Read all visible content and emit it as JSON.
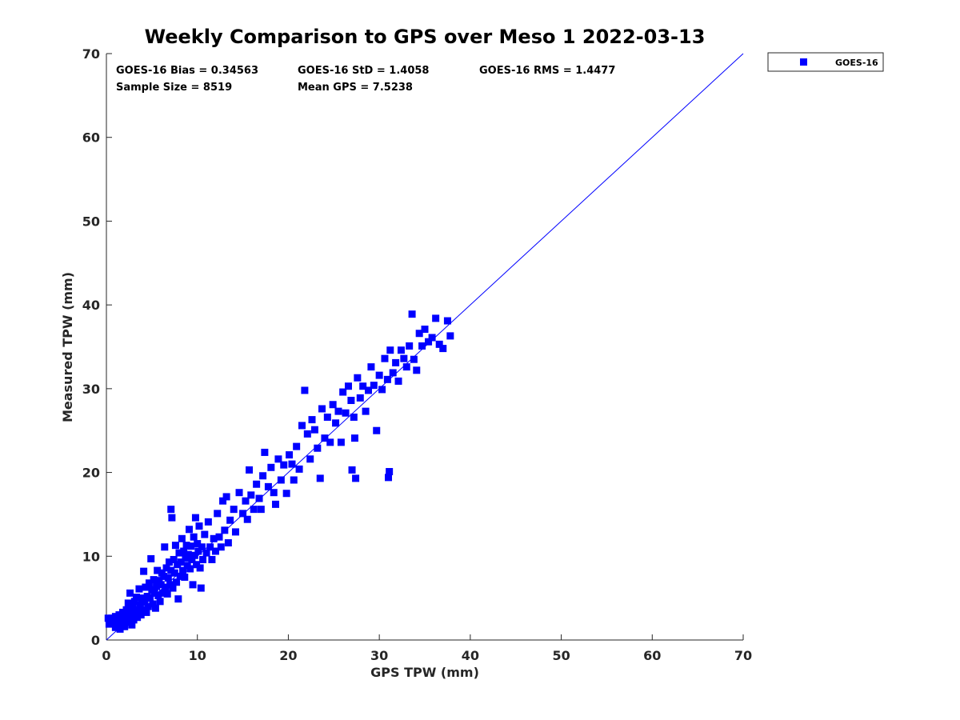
{
  "chart_data": {
    "type": "scatter",
    "title": "Weekly Comparison to GPS over Meso 1 2022-03-13",
    "xlabel": "GPS TPW (mm)",
    "ylabel": "Measured TPW (mm)",
    "xlim": [
      0,
      70
    ],
    "ylim": [
      0,
      70
    ],
    "xticks": [
      "0",
      "10",
      "20",
      "30",
      "40",
      "50",
      "60",
      "70"
    ],
    "yticks": [
      "0",
      "10",
      "20",
      "30",
      "40",
      "50",
      "60",
      "70"
    ],
    "legend": {
      "position": "outside-top-right",
      "entries": [
        "GOES-16"
      ]
    },
    "stats": {
      "bias": "GOES-16 Bias = 0.34563",
      "std": "GOES-16 StD = 1.4058",
      "rms": "GOES-16 RMS = 1.4477",
      "sample_size": "Sample Size = 8519",
      "mean_gps": "Mean GPS = 7.5238"
    },
    "reference_line": {
      "x": [
        0,
        70
      ],
      "y": [
        0,
        70
      ]
    },
    "series": [
      {
        "name": "GOES-16",
        "color": "#0000ff",
        "marker": "square",
        "points": [
          [
            0.2,
            2.6
          ],
          [
            0.3,
            1.9
          ],
          [
            0.5,
            2.3
          ],
          [
            0.6,
            2.6
          ],
          [
            0.8,
            2.1
          ],
          [
            1.0,
            1.5
          ],
          [
            1.0,
            2.8
          ],
          [
            1.2,
            1.8
          ],
          [
            1.3,
            2.3
          ],
          [
            1.4,
            3.0
          ],
          [
            1.5,
            1.3
          ],
          [
            1.6,
            2.6
          ],
          [
            1.7,
            1.9
          ],
          [
            1.8,
            3.3
          ],
          [
            1.9,
            2.2
          ],
          [
            2.0,
            1.6
          ],
          [
            2.1,
            2.9
          ],
          [
            2.2,
            3.6
          ],
          [
            2.3,
            2.1
          ],
          [
            2.4,
            4.4
          ],
          [
            2.5,
            2.6
          ],
          [
            2.6,
            3.1
          ],
          [
            2.6,
            5.6
          ],
          [
            2.8,
            1.8
          ],
          [
            2.9,
            3.8
          ],
          [
            3.0,
            2.4
          ],
          [
            3.1,
            4.6
          ],
          [
            3.2,
            3.1
          ],
          [
            3.3,
            5.1
          ],
          [
            3.4,
            2.7
          ],
          [
            3.5,
            3.6
          ],
          [
            3.6,
            6.1
          ],
          [
            3.7,
            4.2
          ],
          [
            3.8,
            3.0
          ],
          [
            3.9,
            5.0
          ],
          [
            4.0,
            3.6
          ],
          [
            4.1,
            8.2
          ],
          [
            4.2,
            4.5
          ],
          [
            4.3,
            6.3
          ],
          [
            4.4,
            3.3
          ],
          [
            4.5,
            5.2
          ],
          [
            4.6,
            4.0
          ],
          [
            4.7,
            6.8
          ],
          [
            4.8,
            5.0
          ],
          [
            4.9,
            9.7
          ],
          [
            5.0,
            6.0
          ],
          [
            5.1,
            4.3
          ],
          [
            5.2,
            7.2
          ],
          [
            5.3,
            5.6
          ],
          [
            5.4,
            3.8
          ],
          [
            5.5,
            6.4
          ],
          [
            5.6,
            8.3
          ],
          [
            5.7,
            5.3
          ],
          [
            5.8,
            7.1
          ],
          [
            5.9,
            4.6
          ],
          [
            6.0,
            6.6
          ],
          [
            6.1,
            8.0
          ],
          [
            6.2,
            5.6
          ],
          [
            6.3,
            7.6
          ],
          [
            6.4,
            11.1
          ],
          [
            6.5,
            6.3
          ],
          [
            6.6,
            8.6
          ],
          [
            6.7,
            5.5
          ],
          [
            6.8,
            7.4
          ],
          [
            6.9,
            9.3
          ],
          [
            7.0,
            6.6
          ],
          [
            7.1,
            8.3
          ],
          [
            7.1,
            15.6
          ],
          [
            7.2,
            14.6
          ],
          [
            7.3,
            6.2
          ],
          [
            7.4,
            9.6
          ],
          [
            7.5,
            8.0
          ],
          [
            7.6,
            11.3
          ],
          [
            7.7,
            6.9
          ],
          [
            7.8,
            9.0
          ],
          [
            7.9,
            4.9
          ],
          [
            8.0,
            10.4
          ],
          [
            8.1,
            7.6
          ],
          [
            8.2,
            9.3
          ],
          [
            8.3,
            12.1
          ],
          [
            8.4,
            8.3
          ],
          [
            8.5,
            10.6
          ],
          [
            8.6,
            7.5
          ],
          [
            8.7,
            9.8
          ],
          [
            8.8,
            11.3
          ],
          [
            8.9,
            8.9
          ],
          [
            9.0,
            10.2
          ],
          [
            9.1,
            13.2
          ],
          [
            9.2,
            8.5
          ],
          [
            9.3,
            11.2
          ],
          [
            9.4,
            9.6
          ],
          [
            9.5,
            6.6
          ],
          [
            9.6,
            12.3
          ],
          [
            9.7,
            10.1
          ],
          [
            9.8,
            14.6
          ],
          [
            9.9,
            9.0
          ],
          [
            10.0,
            11.5
          ],
          [
            10.1,
            10.6
          ],
          [
            10.2,
            13.6
          ],
          [
            10.3,
            8.6
          ],
          [
            10.4,
            6.2
          ],
          [
            10.5,
            11.1
          ],
          [
            10.6,
            9.6
          ],
          [
            10.8,
            12.6
          ],
          [
            11.0,
            10.4
          ],
          [
            11.2,
            14.1
          ],
          [
            11.4,
            11.1
          ],
          [
            11.6,
            9.6
          ],
          [
            11.8,
            12.1
          ],
          [
            12.0,
            10.6
          ],
          [
            12.2,
            15.1
          ],
          [
            12.4,
            12.3
          ],
          [
            12.6,
            11.1
          ],
          [
            12.8,
            16.6
          ],
          [
            13.0,
            13.1
          ],
          [
            13.2,
            17.1
          ],
          [
            13.4,
            11.6
          ],
          [
            13.6,
            14.3
          ],
          [
            14.0,
            15.6
          ],
          [
            14.2,
            12.9
          ],
          [
            14.6,
            17.6
          ],
          [
            15.0,
            15.1
          ],
          [
            15.3,
            16.6
          ],
          [
            15.5,
            14.4
          ],
          [
            15.7,
            20.3
          ],
          [
            15.9,
            17.3
          ],
          [
            16.2,
            15.6
          ],
          [
            16.5,
            18.6
          ],
          [
            16.8,
            16.9
          ],
          [
            17.0,
            15.6
          ],
          [
            17.2,
            19.6
          ],
          [
            17.4,
            22.4
          ],
          [
            17.8,
            18.3
          ],
          [
            18.1,
            20.6
          ],
          [
            18.4,
            17.6
          ],
          [
            18.6,
            16.2
          ],
          [
            18.9,
            21.6
          ],
          [
            19.2,
            19.1
          ],
          [
            19.5,
            20.9
          ],
          [
            19.8,
            17.5
          ],
          [
            20.1,
            22.1
          ],
          [
            20.4,
            21.0
          ],
          [
            20.6,
            19.1
          ],
          [
            20.9,
            23.1
          ],
          [
            21.2,
            20.4
          ],
          [
            21.5,
            25.6
          ],
          [
            21.8,
            29.8
          ],
          [
            22.1,
            24.6
          ],
          [
            22.4,
            21.6
          ],
          [
            22.6,
            26.3
          ],
          [
            22.9,
            25.1
          ],
          [
            23.2,
            22.9
          ],
          [
            23.5,
            19.3
          ],
          [
            23.7,
            27.6
          ],
          [
            24.0,
            24.1
          ],
          [
            24.3,
            26.6
          ],
          [
            24.6,
            23.6
          ],
          [
            24.9,
            28.1
          ],
          [
            25.2,
            25.9
          ],
          [
            25.5,
            27.3
          ],
          [
            25.8,
            23.6
          ],
          [
            26.0,
            29.6
          ],
          [
            26.3,
            27.1
          ],
          [
            26.6,
            30.3
          ],
          [
            26.9,
            28.6
          ],
          [
            27.0,
            20.3
          ],
          [
            27.2,
            26.6
          ],
          [
            27.3,
            24.1
          ],
          [
            27.4,
            19.3
          ],
          [
            27.6,
            31.3
          ],
          [
            27.9,
            28.9
          ],
          [
            28.2,
            30.3
          ],
          [
            28.5,
            27.3
          ],
          [
            28.8,
            29.8
          ],
          [
            29.1,
            32.6
          ],
          [
            29.4,
            30.4
          ],
          [
            29.7,
            25.0
          ],
          [
            30.0,
            31.6
          ],
          [
            30.3,
            29.9
          ],
          [
            30.6,
            33.6
          ],
          [
            30.9,
            31.1
          ],
          [
            31.0,
            19.4
          ],
          [
            31.1,
            20.1
          ],
          [
            31.2,
            34.6
          ],
          [
            31.5,
            31.9
          ],
          [
            31.8,
            33.1
          ],
          [
            32.1,
            30.9
          ],
          [
            32.4,
            34.6
          ],
          [
            32.7,
            33.6
          ],
          [
            33.0,
            32.6
          ],
          [
            33.3,
            35.1
          ],
          [
            33.6,
            38.9
          ],
          [
            33.8,
            33.5
          ],
          [
            34.1,
            32.2
          ],
          [
            34.4,
            36.6
          ],
          [
            34.7,
            35.1
          ],
          [
            35.0,
            37.1
          ],
          [
            35.4,
            35.6
          ],
          [
            35.8,
            36.1
          ],
          [
            36.2,
            38.4
          ],
          [
            36.6,
            35.3
          ],
          [
            37.0,
            34.8
          ],
          [
            37.5,
            38.1
          ],
          [
            37.8,
            36.3
          ]
        ]
      }
    ]
  }
}
